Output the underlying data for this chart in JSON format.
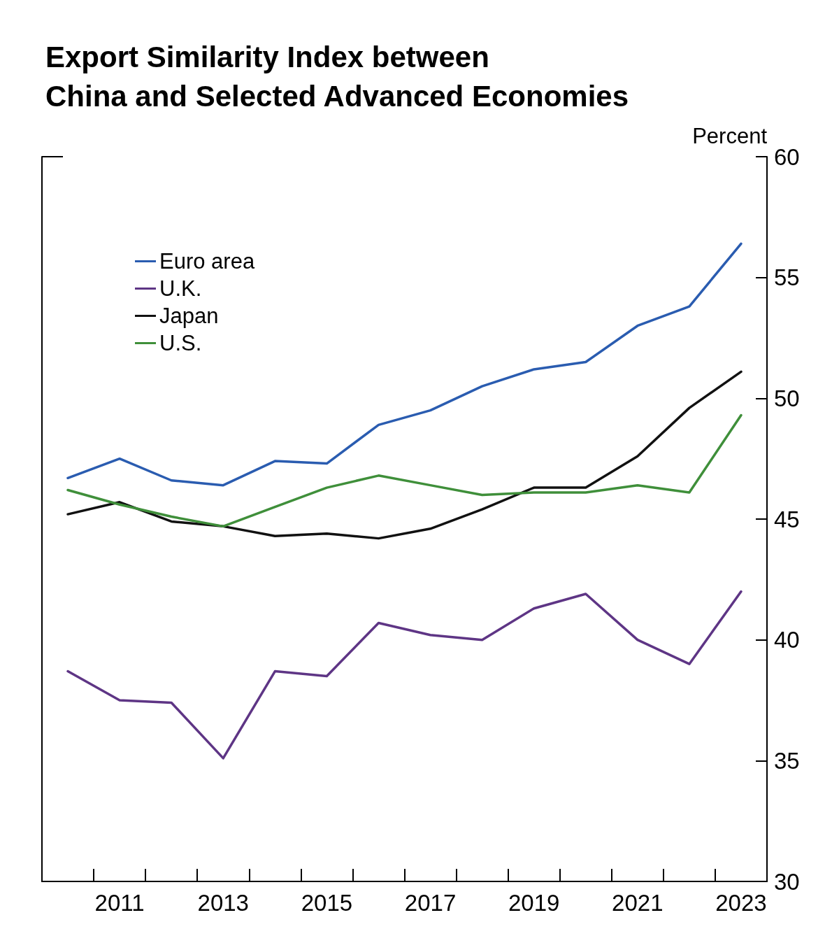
{
  "chart_data": {
    "type": "line",
    "title": "Export Similarity Index between\nChina and Selected Advanced Economies",
    "ylabel": "Percent",
    "categories": [
      null,
      "2011",
      null,
      "2013",
      null,
      "2015",
      null,
      "2017",
      null,
      "2019",
      null,
      "2021",
      null,
      "2023"
    ],
    "series": [
      {
        "name": "Euro area",
        "color": "#2a5cb0",
        "values": [
          46.7,
          47.5,
          46.6,
          46.4,
          47.4,
          47.3,
          48.9,
          49.5,
          50.5,
          51.2,
          51.5,
          53.0,
          53.8,
          56.4
        ]
      },
      {
        "name": "U.K.",
        "color": "#5e3585",
        "values": [
          38.7,
          37.5,
          37.4,
          35.1,
          38.7,
          38.5,
          40.7,
          40.2,
          40.0,
          41.3,
          41.9,
          40.0,
          39.0,
          42.0
        ]
      },
      {
        "name": "Japan",
        "color": "#111111",
        "values": [
          45.2,
          45.7,
          44.9,
          44.7,
          44.3,
          44.4,
          44.2,
          44.6,
          45.4,
          46.3,
          46.3,
          47.6,
          49.6,
          51.1
        ]
      },
      {
        "name": "U.S.",
        "color": "#3f8f3a",
        "values": [
          46.2,
          45.6,
          45.1,
          44.7,
          45.5,
          46.3,
          46.8,
          46.4,
          46.0,
          46.1,
          46.1,
          46.4,
          46.1,
          49.3
        ]
      }
    ],
    "ylim": [
      30,
      60
    ],
    "yticks": [
      30,
      35,
      40,
      45,
      50,
      55,
      60
    ],
    "grid": false,
    "legend": "top left",
    "marker": "none",
    "line_style": "solid"
  }
}
